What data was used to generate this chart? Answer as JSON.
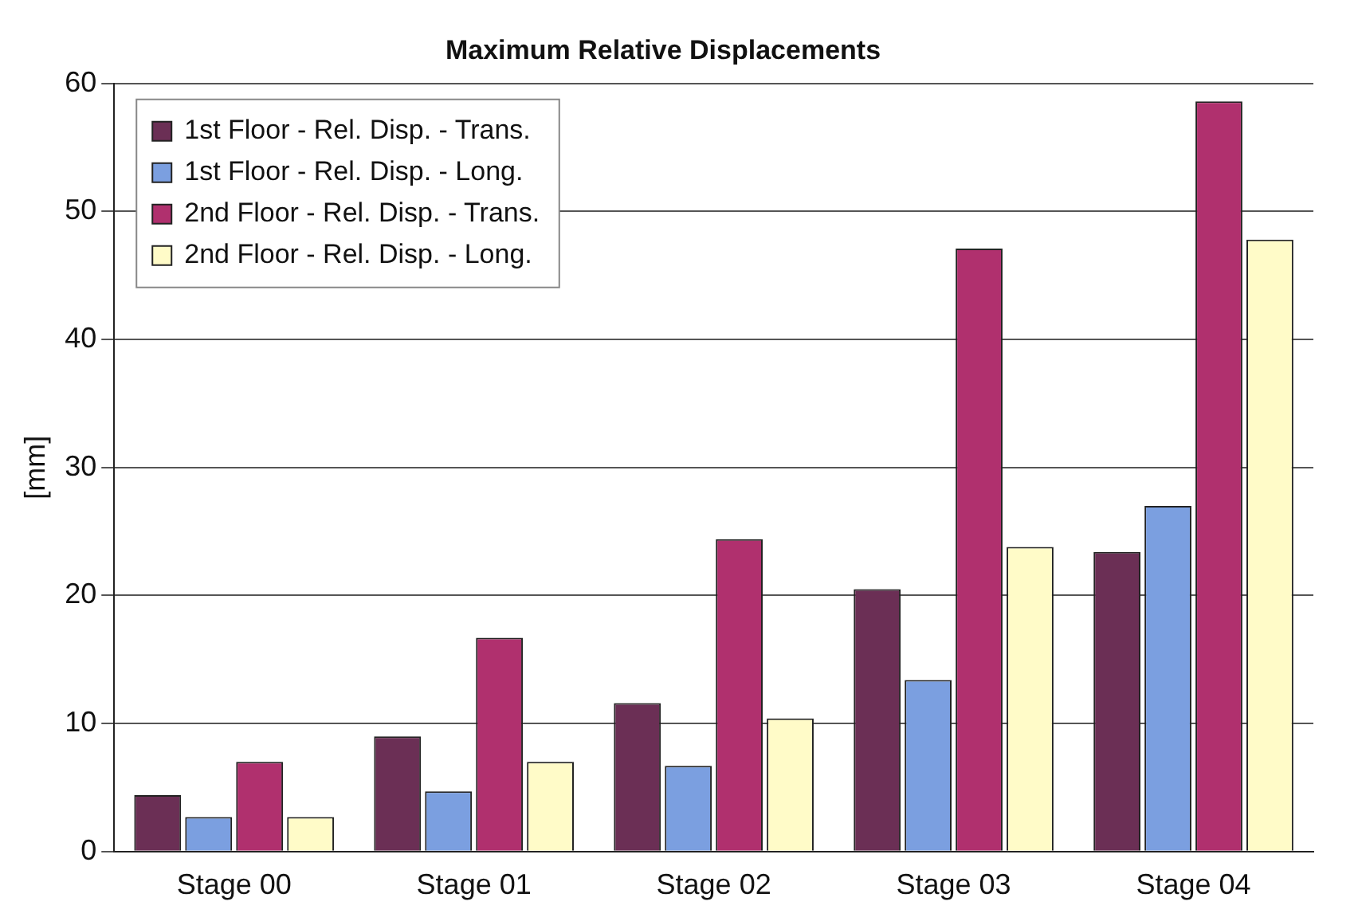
{
  "chart_data": {
    "type": "bar",
    "title": "Maximum Relative Displacements",
    "ylabel": "[mm]",
    "categories": [
      "Stage 00",
      "Stage 01",
      "Stage 02",
      "Stage 03",
      "Stage 04"
    ],
    "series": [
      {
        "name": "1st Floor - Rel. Disp. - Trans.",
        "color": "#6b2f55",
        "values": [
          4.4,
          9,
          11.6,
          20.5,
          23.4
        ]
      },
      {
        "name": "1st Floor - Rel. Disp. - Long.",
        "color": "#7b9fe0",
        "values": [
          2.7,
          4.7,
          6.7,
          13.4,
          27
        ]
      },
      {
        "name": "2nd Floor - Rel. Disp. - Trans.",
        "color": "#b0306e",
        "values": [
          7,
          16.7,
          24.4,
          47.1,
          58.6
        ]
      },
      {
        "name": "2nd Floor - Rel. Disp. - Long.",
        "color": "#fffbc8",
        "values": [
          2.7,
          7,
          10.4,
          23.8,
          47.8
        ]
      }
    ],
    "ylim": [
      0,
      60
    ],
    "yticks": [
      0,
      10,
      20,
      30,
      40,
      50,
      60
    ],
    "grid": "y",
    "legend": "top left"
  }
}
